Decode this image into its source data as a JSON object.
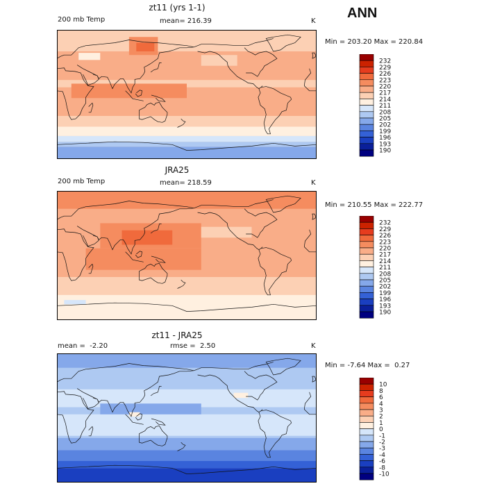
{
  "season_label": "ANN",
  "chart_data": [
    {
      "type": "heatmap",
      "title": "zt11 (yrs 1-1)",
      "left_label": "200 mb Temp",
      "center_label": "mean= 216.39",
      "units": "K",
      "minmax_text": "Min = 203.20 Max = 220.84",
      "mean": 216.39,
      "min": 203.2,
      "max": 220.84,
      "colorbar": {
        "levels": [
          "232",
          "229",
          "226",
          "223",
          "220",
          "217",
          "214",
          "211",
          "208",
          "205",
          "202",
          "199",
          "196",
          "193",
          "190"
        ],
        "colors": [
          "#990000",
          "#cc2200",
          "#e63c1e",
          "#f06a3c",
          "#f58c5f",
          "#f9ad88",
          "#fcd0b4",
          "#fff0e0",
          "#d6e6fa",
          "#aec9f2",
          "#85a8ea",
          "#5a84e0",
          "#3461d6",
          "#1a3fc0",
          "#0a1f9a",
          "#000080"
        ]
      }
    },
    {
      "type": "heatmap",
      "title": "JRA25",
      "left_label": "200 mb Temp",
      "center_label": "mean= 218.59",
      "units": "K",
      "minmax_text": "Min = 210.55 Max = 222.77",
      "mean": 218.59,
      "min": 210.55,
      "max": 222.77,
      "colorbar": {
        "levels": [
          "232",
          "229",
          "226",
          "223",
          "220",
          "217",
          "214",
          "211",
          "208",
          "205",
          "202",
          "199",
          "196",
          "193",
          "190"
        ],
        "colors": [
          "#990000",
          "#cc2200",
          "#e63c1e",
          "#f06a3c",
          "#f58c5f",
          "#f9ad88",
          "#fcd0b4",
          "#fff0e0",
          "#d6e6fa",
          "#aec9f2",
          "#85a8ea",
          "#5a84e0",
          "#3461d6",
          "#1a3fc0",
          "#0a1f9a",
          "#000080"
        ]
      }
    },
    {
      "type": "heatmap",
      "title": "zt11 - JRA25",
      "left_label": "mean =  -2.20",
      "center_label": "rmse =  2.50",
      "units": "K",
      "minmax_text": "Min = -7.64 Max =  0.27",
      "mean": -2.2,
      "rmse": 2.5,
      "min": -7.64,
      "max": 0.27,
      "colorbar": {
        "levels": [
          "10",
          "8",
          "6",
          "4",
          "3",
          "2",
          "1",
          "0",
          "-1",
          "-2",
          "-3",
          "-4",
          "-6",
          "-8",
          "-10"
        ],
        "colors": [
          "#990000",
          "#cc2200",
          "#e63c1e",
          "#f06a3c",
          "#f58c5f",
          "#f9ad88",
          "#fcd0b4",
          "#fff0e0",
          "#d6e6fa",
          "#aec9f2",
          "#85a8ea",
          "#5a84e0",
          "#3461d6",
          "#1a3fc0",
          "#0a1f9a",
          "#000080"
        ]
      }
    }
  ]
}
